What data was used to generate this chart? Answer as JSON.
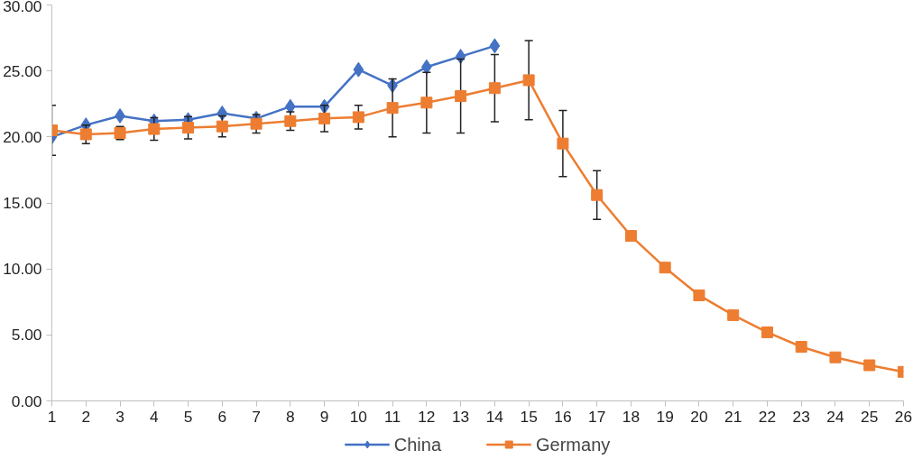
{
  "chart_data": {
    "type": "line",
    "x": [
      1,
      2,
      3,
      4,
      5,
      6,
      7,
      8,
      9,
      10,
      11,
      12,
      13,
      14,
      15,
      16,
      17,
      18,
      19,
      20,
      21,
      22,
      23,
      24,
      25,
      26
    ],
    "xlim": [
      1,
      26
    ],
    "xticks": [
      1,
      2,
      3,
      4,
      5,
      6,
      7,
      8,
      9,
      10,
      11,
      12,
      13,
      14,
      15,
      16,
      17,
      18,
      19,
      20,
      21,
      22,
      23,
      24,
      25,
      26
    ],
    "ylim": [
      0,
      30
    ],
    "yticks": [
      {
        "value": 0,
        "label": "0.00"
      },
      {
        "value": 5,
        "label": "5.00"
      },
      {
        "value": 10,
        "label": "10.00"
      },
      {
        "value": 15,
        "label": "15.00"
      },
      {
        "value": 20,
        "label": "20.00"
      },
      {
        "value": 25,
        "label": "25.00"
      },
      {
        "value": 30,
        "label": "30.00"
      }
    ],
    "grid": false,
    "legend": "bottom",
    "series": [
      {
        "name": "China",
        "color": "#4472c4",
        "marker": "diamond",
        "values": [
          20.0,
          20.9,
          21.6,
          21.2,
          21.3,
          21.8,
          21.4,
          22.3,
          22.3,
          25.1,
          23.9,
          25.3,
          26.1,
          26.9,
          null,
          null,
          null,
          null,
          null,
          null,
          null,
          null,
          null,
          null,
          null,
          null
        ]
      },
      {
        "name": "Germany",
        "color": "#ed7d31",
        "marker": "square",
        "values": [
          20.5,
          20.2,
          20.3,
          20.6,
          20.7,
          20.8,
          21.0,
          21.2,
          21.4,
          21.5,
          22.2,
          22.6,
          23.1,
          23.7,
          24.3,
          19.5,
          15.6,
          12.5,
          10.1,
          8.0,
          6.5,
          5.2,
          4.1,
          3.3,
          2.7,
          2.2
        ],
        "errors": [
          1.9,
          0.7,
          0.5,
          0.85,
          0.85,
          0.8,
          0.7,
          0.7,
          1.0,
          0.9,
          2.2,
          2.3,
          2.8,
          2.55,
          3.0,
          2.5,
          1.85,
          null,
          null,
          null,
          null,
          null,
          null,
          null,
          null,
          null
        ]
      }
    ]
  }
}
